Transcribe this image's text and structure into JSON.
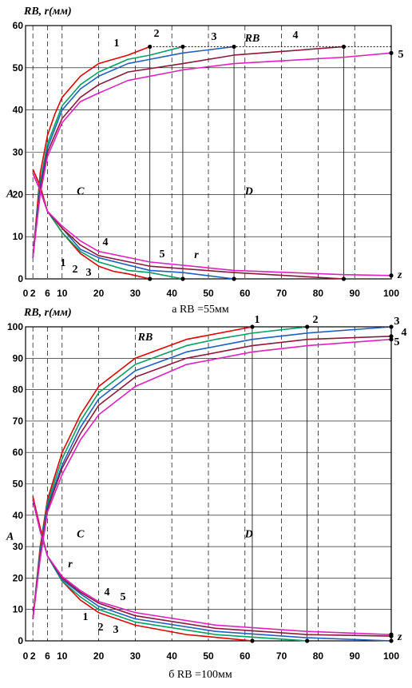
{
  "chart_data": [
    {
      "type": "line",
      "ylabel": "RВ, r(мм)",
      "xlabel": "z",
      "caption": "а   RВ =55мм",
      "xticks": [
        "0",
        "2",
        "6",
        "10",
        "20",
        "30",
        "40",
        "50",
        "60",
        "70",
        "80",
        "90",
        "100"
      ],
      "yticks": [
        "0",
        "10",
        "20",
        "30",
        "40",
        "50",
        "60"
      ],
      "xlim": [
        0,
        100
      ],
      "ylim": [
        0,
        60
      ],
      "regions": [
        "A",
        "C",
        "D"
      ],
      "annotations": [
        "1",
        "2",
        "3",
        "4",
        "5",
        "RB",
        "r",
        "1",
        "2",
        "3",
        "4",
        "5"
      ],
      "series": [
        {
          "name": "1",
          "color": "#e00000",
          "knee": 34,
          "rb_x": [
            2,
            4,
            6,
            8,
            10,
            15,
            20,
            24,
            28,
            34
          ],
          "rb_y": [
            5,
            25,
            34,
            39,
            43,
            48,
            51,
            52,
            53,
            55
          ],
          "r_x": [
            2,
            4,
            6,
            10,
            15,
            20,
            24,
            28,
            34
          ],
          "r_y": [
            26,
            22,
            16,
            11,
            6,
            3,
            1.8,
            1.2,
            0
          ]
        },
        {
          "name": "2",
          "color": "#00a060",
          "knee": 43,
          "rb_x": [
            2,
            4,
            6,
            10,
            15,
            20,
            28,
            34,
            43
          ],
          "rb_y": [
            5,
            23,
            32,
            41,
            46,
            49,
            52,
            53,
            55
          ],
          "r_x": [
            2,
            4,
            6,
            10,
            15,
            20,
            28,
            34,
            43
          ],
          "r_y": [
            25,
            21,
            16,
            11,
            6.5,
            4,
            2,
            1.5,
            0
          ]
        },
        {
          "name": "3",
          "color": "#1f5fbf",
          "knee": 57,
          "rb_x": [
            2,
            4,
            6,
            10,
            15,
            20,
            28,
            34,
            43,
            57
          ],
          "rb_y": [
            5,
            22,
            31,
            40,
            45,
            48,
            51,
            52,
            53.5,
            55
          ],
          "r_x": [
            2,
            4,
            6,
            10,
            15,
            20,
            34,
            43,
            57
          ],
          "r_y": [
            25,
            21,
            16,
            12,
            7,
            5,
            2,
            1.5,
            0
          ]
        },
        {
          "name": "4",
          "color": "#8b1a3a",
          "knee": 87,
          "rb_x": [
            2,
            4,
            6,
            10,
            15,
            20,
            28,
            43,
            57,
            87
          ],
          "rb_y": [
            5,
            21,
            30,
            38,
            43,
            46,
            49,
            51,
            53,
            55
          ],
          "r_x": [
            2,
            4,
            6,
            10,
            15,
            20,
            34,
            57,
            87
          ],
          "r_y": [
            25,
            21,
            16,
            12,
            8,
            5.5,
            3,
            1.5,
            0
          ]
        },
        {
          "name": "5",
          "color": "#e020c0",
          "knee": 100,
          "rb_x": [
            2,
            4,
            6,
            10,
            15,
            20,
            28,
            43,
            57,
            87,
            100
          ],
          "rb_y": [
            5,
            20,
            29,
            37,
            42,
            44,
            47,
            49.5,
            51,
            52.5,
            53.5
          ],
          "r_x": [
            2,
            4,
            6,
            10,
            15,
            20,
            34,
            57,
            87,
            100
          ],
          "r_y": [
            25,
            21,
            16,
            12.5,
            9,
            6.5,
            4,
            2,
            1,
            0.8
          ]
        }
      ]
    },
    {
      "type": "line",
      "ylabel": "RВ, r(мм)",
      "xlabel": "z",
      "caption": "б   RВ =100мм",
      "xticks": [
        "0",
        "2",
        "6",
        "10",
        "20",
        "30",
        "40",
        "50",
        "60",
        "70",
        "80",
        "90",
        "100"
      ],
      "yticks": [
        "0",
        "10",
        "20",
        "30",
        "40",
        "50",
        "60",
        "70",
        "80",
        "90",
        "100"
      ],
      "xlim": [
        0,
        100
      ],
      "ylim": [
        0,
        100
      ],
      "regions": [
        "A",
        "C",
        "D"
      ],
      "annotations": [
        "1",
        "2",
        "3",
        "4",
        "5",
        "RB",
        "r",
        "1",
        "2",
        "3",
        "4",
        "5"
      ],
      "series": [
        {
          "name": "1",
          "color": "#e00000",
          "knee": 62,
          "rb_x": [
            2,
            4,
            6,
            10,
            15,
            20,
            30,
            44,
            62
          ],
          "rb_y": [
            7,
            30,
            45,
            60,
            72,
            81,
            90,
            96,
            100
          ],
          "r_x": [
            2,
            4,
            6,
            10,
            15,
            20,
            30,
            44,
            62
          ],
          "r_y": [
            46,
            36,
            27,
            19,
            13,
            9,
            5,
            2,
            0
          ]
        },
        {
          "name": "2",
          "color": "#00a060",
          "knee": 77,
          "rb_x": [
            2,
            4,
            6,
            10,
            15,
            20,
            30,
            44,
            52,
            62,
            77
          ],
          "rb_y": [
            7,
            29,
            44,
            58,
            70,
            79,
            88,
            94,
            96,
            98,
            100
          ],
          "r_x": [
            2,
            4,
            6,
            10,
            15,
            20,
            30,
            52,
            77
          ],
          "r_y": [
            45,
            35,
            27,
            19,
            14,
            10,
            6,
            2,
            0
          ]
        },
        {
          "name": "3",
          "color": "#1f5fbf",
          "knee": 100,
          "rb_x": [
            2,
            4,
            6,
            10,
            15,
            20,
            30,
            44,
            62,
            77,
            100
          ],
          "rb_y": [
            7,
            28,
            43,
            56,
            68,
            77,
            86,
            92,
            96,
            98,
            100
          ],
          "r_x": [
            2,
            4,
            6,
            10,
            15,
            20,
            30,
            52,
            77,
            100
          ],
          "r_y": [
            45,
            35,
            27,
            19.5,
            15,
            11,
            7,
            3,
            1,
            0
          ]
        },
        {
          "name": "4",
          "color": "#8b1a3a",
          "knee": 100,
          "rb_x": [
            2,
            4,
            6,
            10,
            15,
            20,
            30,
            44,
            62,
            77,
            100
          ],
          "rb_y": [
            7,
            27,
            42,
            55,
            66,
            75,
            84,
            90,
            94,
            96,
            97
          ],
          "r_x": [
            2,
            4,
            6,
            10,
            15,
            20,
            30,
            52,
            77,
            100
          ],
          "r_y": [
            45,
            35,
            27,
            20,
            15.5,
            12,
            8,
            4,
            2,
            1.5
          ]
        },
        {
          "name": "5",
          "color": "#e020c0",
          "knee": 100,
          "rb_x": [
            2,
            4,
            6,
            10,
            15,
            20,
            30,
            44,
            62,
            77,
            100
          ],
          "rb_y": [
            7,
            26,
            41,
            53,
            64,
            72,
            81,
            88,
            92,
            94,
            96
          ],
          "r_x": [
            2,
            4,
            6,
            10,
            15,
            20,
            30,
            52,
            77,
            100
          ],
          "r_y": [
            45,
            35,
            27,
            20.5,
            16,
            12.5,
            9,
            5,
            3,
            2
          ]
        }
      ]
    }
  ]
}
